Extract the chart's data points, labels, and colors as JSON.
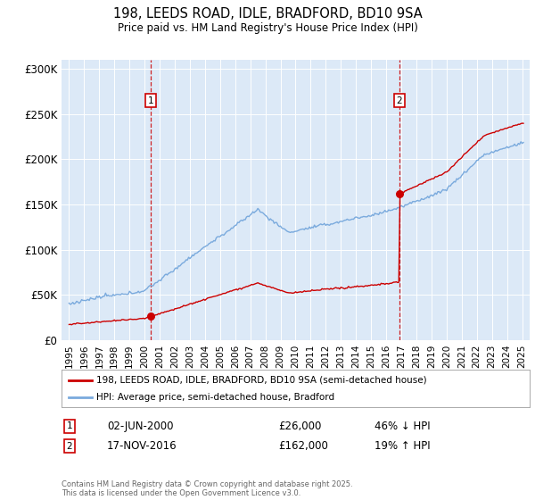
{
  "title_line1": "198, LEEDS ROAD, IDLE, BRADFORD, BD10 9SA",
  "title_line2": "Price paid vs. HM Land Registry's House Price Index (HPI)",
  "bg_color": "#dce9f7",
  "red_color": "#cc0000",
  "blue_color": "#7aaadd",
  "sale1_date_num": 2000.42,
  "sale1_price": 26000,
  "sale2_date_num": 2016.88,
  "sale2_price": 162000,
  "ylim_min": 0,
  "ylim_max": 310000,
  "xlim_min": 1994.5,
  "xlim_max": 2025.5,
  "yticks": [
    0,
    50000,
    100000,
    150000,
    200000,
    250000,
    300000
  ],
  "ytick_labels": [
    "£0",
    "£50K",
    "£100K",
    "£150K",
    "£200K",
    "£250K",
    "£300K"
  ],
  "xticks": [
    1995,
    1996,
    1997,
    1998,
    1999,
    2000,
    2001,
    2002,
    2003,
    2004,
    2005,
    2006,
    2007,
    2008,
    2009,
    2010,
    2011,
    2012,
    2013,
    2014,
    2015,
    2016,
    2017,
    2018,
    2019,
    2020,
    2021,
    2022,
    2023,
    2024,
    2025
  ],
  "legend_label1": "198, LEEDS ROAD, IDLE, BRADFORD, BD10 9SA (semi-detached house)",
  "legend_label2": "HPI: Average price, semi-detached house, Bradford",
  "sale1_text": "02-JUN-2000",
  "sale1_amount": "£26,000",
  "sale1_hpi": "46% ↓ HPI",
  "sale2_text": "17-NOV-2016",
  "sale2_amount": "£162,000",
  "sale2_hpi": "19% ↑ HPI",
  "footer": "Contains HM Land Registry data © Crown copyright and database right 2025.\nThis data is licensed under the Open Government Licence v3.0."
}
